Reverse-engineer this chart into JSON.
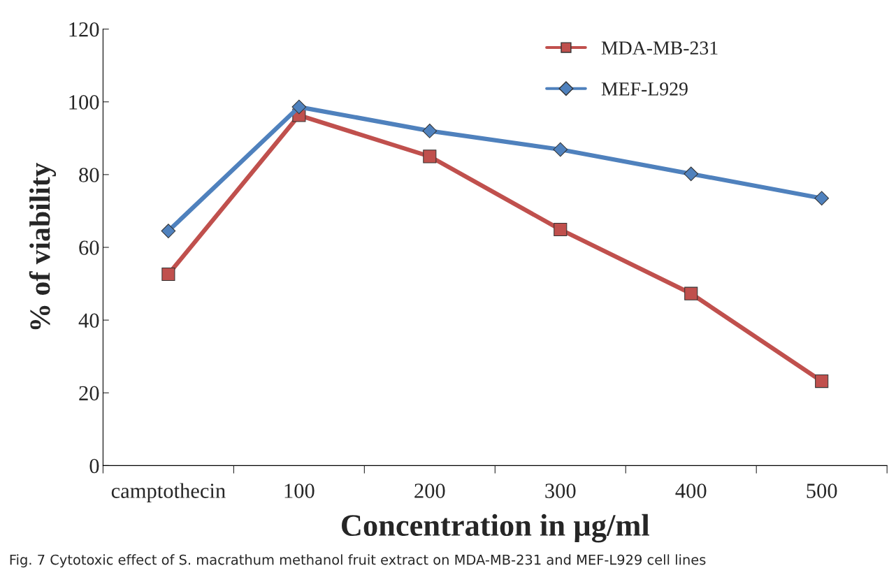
{
  "chart_data": {
    "type": "line",
    "xlabel": "Concentration in µg/ml",
    "ylabel": "% of viability",
    "categories": [
      "camptothecin",
      "100",
      "200",
      "300",
      "400",
      "500"
    ],
    "series": [
      {
        "name": "MDA-MB-231",
        "color": "#c0504d",
        "marker": "square",
        "values": [
          52.6,
          96.3,
          85,
          64.9,
          47.3,
          23.2
        ]
      },
      {
        "name": "MEF-L929",
        "color": "#4f81bd",
        "marker": "diamond",
        "values": [
          64.5,
          98.6,
          92,
          86.9,
          80.2,
          73.5
        ]
      }
    ],
    "ylim": [
      0,
      120
    ],
    "yticks": [
      0,
      20,
      40,
      60,
      80,
      100,
      120
    ],
    "grid": false,
    "legend": "top right",
    "annotations": [
      "Fig. 7 Cytotoxic effect of S. macrathum methanol fruit extract on MDA-MB-231 and MEF-L929 cell lines"
    ]
  }
}
